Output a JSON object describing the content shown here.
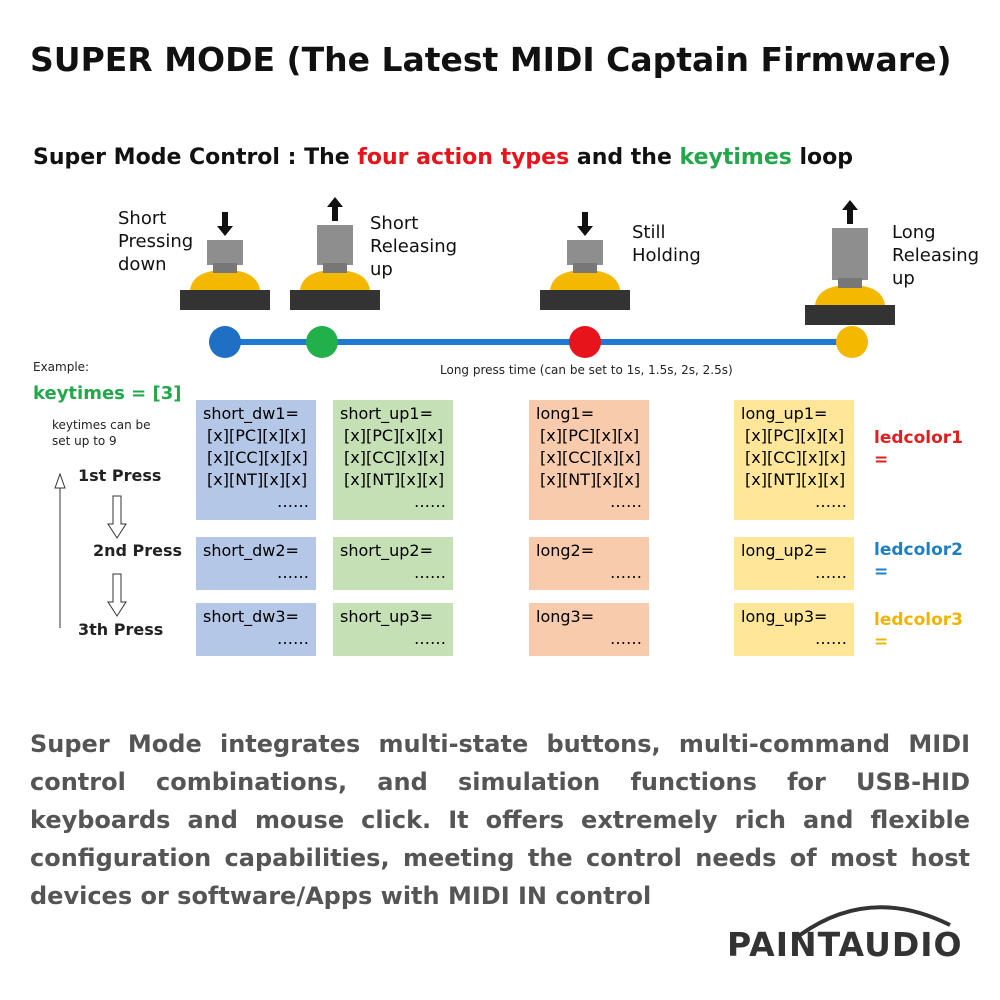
{
  "header": {
    "title": "SUPER MODE (The Latest MIDI Captain Firmware)"
  },
  "control_title": {
    "parts": [
      "Super Mode Control :  The ",
      "four action types",
      " and the ",
      "keytimes",
      " loop"
    ]
  },
  "actions": [
    {
      "label": [
        "Short",
        "Pressing",
        "down"
      ]
    },
    {
      "label": [
        "Short",
        "Releasing",
        "up"
      ]
    },
    {
      "label": [
        "Still",
        "Holding"
      ]
    },
    {
      "label": [
        "Long",
        "Releasing",
        "up"
      ]
    }
  ],
  "timeline_note": "Long press time (can be set to 1s, 1.5s, 2s, 2.5s)",
  "example": {
    "label": "Example:",
    "keytimes": "keytimes = [3]",
    "note": [
      "keytimes can be",
      "set up to 9"
    ]
  },
  "presses": [
    "1st Press",
    "2nd Press",
    "3th Press"
  ],
  "table": {
    "rows": [
      [
        [
          "short_dw1=",
          "[x][PC][x][x]",
          "[x][CC][x][x]",
          "[x][NT][x][x]",
          "……"
        ],
        [
          "short_up1=",
          "[x][PC][x][x]",
          "[x][CC][x][x]",
          "[x][NT][x][x]",
          "……"
        ],
        [
          "long1=",
          "[x][PC][x][x]",
          "[x][CC][x][x]",
          "[x][NT][x][x]",
          "……"
        ],
        [
          "long_up1=",
          "[x][PC][x][x]",
          "[x][CC][x][x]",
          "[x][NT][x][x]",
          "……"
        ]
      ],
      [
        [
          "short_dw2=",
          "……"
        ],
        [
          "short_up2=",
          "……"
        ],
        [
          "long2=",
          "……"
        ],
        [
          "long_up2=",
          "……"
        ]
      ],
      [
        [
          "short_dw3=",
          "……"
        ],
        [
          "short_up3=",
          "……"
        ],
        [
          "long3=",
          "……"
        ],
        [
          "long_up3=",
          "……"
        ]
      ]
    ]
  },
  "ledcolors": [
    [
      "ledcolor1",
      "="
    ],
    [
      "ledcolor2",
      "="
    ],
    [
      "ledcolor3",
      "="
    ]
  ],
  "description": "Super Mode integrates multi-state buttons, multi-command MIDI control combinations, and simulation functions for USB-HID keyboards and mouse click. It offers extremely rich and flexible configuration capabilities, meeting the control needs of most host devices or software/Apps with MIDI IN control",
  "logo": "PAINTAUDIO"
}
